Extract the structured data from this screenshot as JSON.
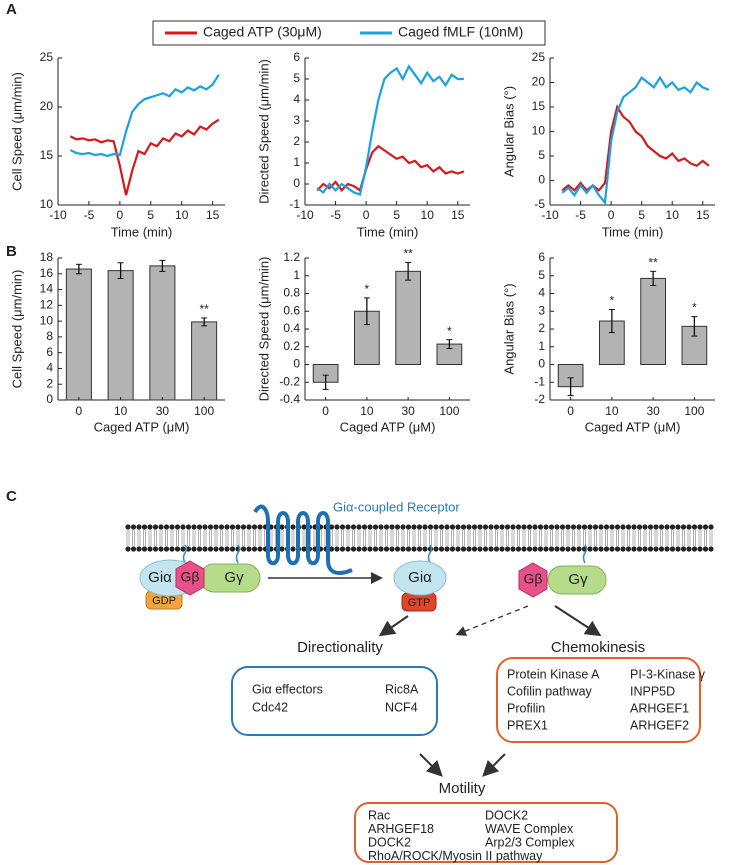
{
  "panel_labels": [
    "A",
    "B",
    "C"
  ],
  "chart_data": [
    {
      "type": "line",
      "ylabel": "Cell Speed (μm/min)",
      "xlabel": "Time (min)",
      "x": [
        -8,
        -7,
        -6,
        -5,
        -4,
        -3,
        -2,
        -1,
        0,
        1,
        2,
        3,
        4,
        5,
        6,
        7,
        8,
        9,
        10,
        11,
        12,
        13,
        14,
        15,
        16
      ],
      "series": [
        {
          "name": "Caged ATP (30μM)",
          "color": "#d7191c",
          "values": [
            17,
            16.7,
            16.8,
            16.6,
            16.7,
            16.4,
            16.6,
            16.5,
            14,
            11,
            13.5,
            15.5,
            15.2,
            16.3,
            16,
            16.8,
            16.5,
            17.3,
            17,
            17.6,
            17.2,
            18,
            17.7,
            18.3,
            18.7
          ]
        },
        {
          "name": "Caged fMLF (10nM)",
          "color": "#1ba1e2",
          "values": [
            15.6,
            15.3,
            15.2,
            15.3,
            15.1,
            15.2,
            15,
            15.2,
            15.1,
            17.5,
            19.5,
            20.3,
            20.8,
            21,
            21.2,
            21.4,
            21.1,
            21.8,
            21.5,
            22,
            21.7,
            22.1,
            21.8,
            22.3,
            23.3
          ]
        }
      ],
      "xlim": [
        -10,
        17
      ],
      "xticks": [
        -10,
        -5,
        0,
        5,
        10,
        15
      ],
      "ylim": [
        10,
        25
      ],
      "yticks": [
        10,
        15,
        20,
        25
      ]
    },
    {
      "type": "line",
      "ylabel": "Directed Speed (μm/min)",
      "xlabel": "Time (min)",
      "x": [
        -8,
        -7,
        -6,
        -5,
        -4,
        -3,
        -2,
        -1,
        0,
        1,
        2,
        3,
        4,
        5,
        6,
        7,
        8,
        9,
        10,
        11,
        12,
        13,
        14,
        15,
        16
      ],
      "series": [
        {
          "color": "#d7191c",
          "values": [
            -0.3,
            0,
            -0.2,
            0.1,
            -0.3,
            0,
            -0.1,
            -0.3,
            0.7,
            1.5,
            1.8,
            1.6,
            1.4,
            1.2,
            1.3,
            1,
            1.1,
            0.8,
            0.9,
            0.6,
            0.8,
            0.5,
            0.6,
            0.5,
            0.6
          ]
        },
        {
          "color": "#1ba1e2",
          "values": [
            -0.2,
            -0.4,
            0,
            -0.3,
            0,
            -0.2,
            -0.4,
            -0.5,
            0.8,
            2.5,
            4,
            5,
            5.3,
            5.5,
            5,
            5.6,
            5.2,
            4.8,
            5.3,
            4.9,
            5.1,
            4.7,
            5.2,
            5,
            5
          ]
        }
      ],
      "xlim": [
        -10,
        17
      ],
      "xticks": [
        -10,
        -5,
        0,
        5,
        10,
        15
      ],
      "ylim": [
        -1,
        6
      ],
      "yticks": [
        -1,
        0,
        1,
        2,
        3,
        4,
        5,
        6
      ]
    },
    {
      "type": "line",
      "ylabel": "Angular Bias (°)",
      "xlabel": "Time (min)",
      "x": [
        -8,
        -7,
        -6,
        -5,
        -4,
        -3,
        -2,
        -1,
        0,
        1,
        2,
        3,
        4,
        5,
        6,
        7,
        8,
        9,
        10,
        11,
        12,
        13,
        14,
        15,
        16
      ],
      "series": [
        {
          "color": "#d7191c",
          "values": [
            -2,
            -1,
            -2,
            -0.5,
            -2,
            -1,
            -2,
            -0.5,
            10,
            15,
            13,
            12,
            10,
            9,
            7,
            6,
            5,
            4.5,
            5.5,
            4,
            4.5,
            3.5,
            3,
            4,
            3
          ]
        },
        {
          "color": "#1ba1e2",
          "values": [
            -2.5,
            -1.5,
            -3,
            -1,
            -2.5,
            -1,
            -3,
            -4.5,
            8,
            14,
            17,
            18,
            19,
            21,
            20,
            19,
            21,
            19,
            20,
            18.5,
            19,
            18,
            20,
            19,
            18.5
          ]
        }
      ],
      "xlim": [
        -10,
        17
      ],
      "xticks": [
        -10,
        -5,
        0,
        5,
        10,
        15
      ],
      "ylim": [
        -5,
        25
      ],
      "yticks": [
        -5,
        0,
        5,
        10,
        15,
        20,
        25
      ]
    },
    {
      "type": "bar",
      "ylabel": "Cell Speed (μm/min)",
      "xlabel": "Caged ATP (μM)",
      "color": "#b3b3b3",
      "categories": [
        "0",
        "10",
        "30",
        "100"
      ],
      "values": [
        16.6,
        16.4,
        17,
        9.9
      ],
      "errors": [
        0.6,
        1,
        0.7,
        0.5
      ],
      "significance": [
        null,
        null,
        null,
        "**"
      ],
      "ylim": [
        0,
        18
      ],
      "yticks": [
        0,
        2,
        4,
        6,
        8,
        10,
        12,
        14,
        16,
        18
      ]
    },
    {
      "type": "bar",
      "ylabel": "Directed Speed (μm/min)",
      "xlabel": "Caged ATP (μM)",
      "color": "#b3b3b3",
      "categories": [
        "0",
        "10",
        "30",
        "100"
      ],
      "values": [
        -0.2,
        0.6,
        1.05,
        0.23
      ],
      "errors": [
        0.08,
        0.15,
        0.1,
        0.05
      ],
      "significance": [
        null,
        "*",
        "**",
        "*"
      ],
      "ylim": [
        -0.4,
        1.2
      ],
      "yticks": [
        -0.4,
        -0.2,
        0,
        0.2,
        0.4,
        0.6,
        0.8,
        1,
        1.2
      ]
    },
    {
      "type": "bar",
      "ylabel": "Angular Bias (°)",
      "xlabel": "Caged ATP (μM)",
      "color": "#b3b3b3",
      "categories": [
        "0",
        "10",
        "30",
        "100"
      ],
      "values": [
        -1.25,
        2.45,
        4.85,
        2.15
      ],
      "errors": [
        0.5,
        0.65,
        0.4,
        0.55
      ],
      "significance": [
        null,
        "*",
        "**",
        "*"
      ],
      "ylim": [
        -2,
        6
      ],
      "yticks": [
        -2,
        -1,
        0,
        1,
        2,
        3,
        4,
        5,
        6
      ]
    }
  ],
  "diagram": {
    "receptor": "Giα-coupled Receptor",
    "inactive": {
      "alpha": "Giα",
      "beta": "Gβ",
      "gamma": "Gγ",
      "nucleotide": "GDP"
    },
    "active_alpha": {
      "alpha": "Giα",
      "nucleotide": "GTP"
    },
    "active_dimer": {
      "beta": "Gβ",
      "gamma": "Gγ"
    },
    "directionality": {
      "title": "Directionality",
      "items": [
        "Giα effectors",
        "Ric8A",
        "Cdc42",
        "NCF4"
      ]
    },
    "chemokinesis": {
      "title": "Chemokinesis",
      "items": [
        "Protein Kinase A",
        "PI-3-Kinase γ",
        "Cofilin pathway",
        "INPP5D",
        "Profilin",
        "ARHGEF1",
        "PREX1",
        "ARHGEF2"
      ]
    },
    "motility": {
      "title": "Motility",
      "items": [
        "Rac",
        "DOCK2",
        "ARHGEF18",
        "WAVE Complex",
        "DOCK2",
        "Arp2/3 Complex",
        "RhoA/ROCK/Myosin II pathway"
      ]
    }
  }
}
